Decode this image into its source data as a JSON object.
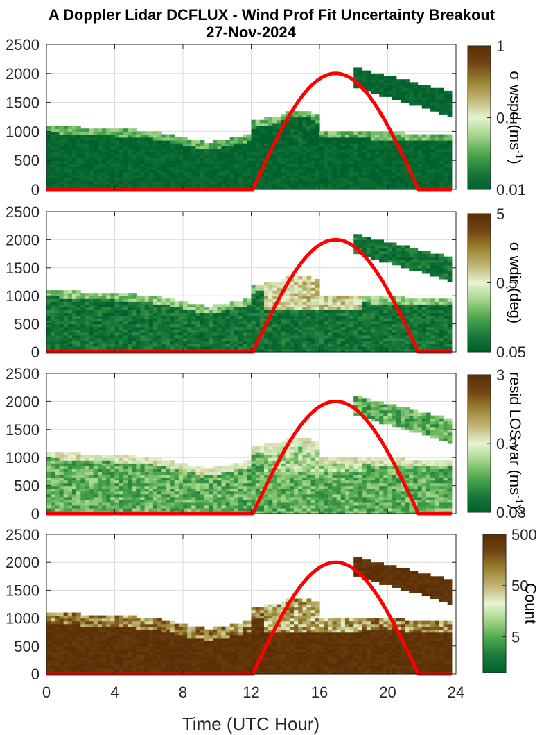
{
  "title_line1": "A Doppler Lidar DCFLUX - Wind Prof Fit Uncertainty Breakout",
  "title_line2": "27-Nov-2024",
  "colors": {
    "colormap": [
      "#00602d",
      "#1a7a3a",
      "#4fa84e",
      "#a6d68a",
      "#e6f3d4",
      "#c2b87a",
      "#9a8432",
      "#704312",
      "#5a2f06"
    ],
    "curve": "#ff0000",
    "grid": "#dcdcdc",
    "axis": "#262626"
  },
  "chart_data": [
    {
      "type": "heatmap",
      "panel": 1,
      "xlim": [
        0,
        24
      ],
      "ylim": [
        0,
        2500
      ],
      "xticks": [
        "0",
        "4",
        "8",
        "12",
        "16",
        "20",
        "24"
      ],
      "yticks": [
        "0",
        "500",
        "1000",
        "1500",
        "2000",
        "2500"
      ],
      "colorbar": {
        "scale": "log",
        "range": [
          0.01,
          1
        ],
        "ticks": [
          "0.01",
          "0.1",
          "1"
        ],
        "label_parts": [
          "σ wspd (ms",
          "-1",
          ")"
        ]
      },
      "field": {
        "base": 0.03,
        "mix_top": 0.12,
        "band_offset": 0.0,
        "variability": 0.05
      },
      "curve": {
        "rise_hour": 12.1,
        "set_hour": 21.8,
        "peak_value": 2000
      }
    },
    {
      "type": "heatmap",
      "panel": 2,
      "xlim": [
        0,
        24
      ],
      "ylim": [
        0,
        2500
      ],
      "xticks": [
        "0",
        "4",
        "8",
        "12",
        "16",
        "20",
        "24"
      ],
      "yticks": [
        "0",
        "500",
        "1000",
        "1500",
        "2000",
        "2500"
      ],
      "colorbar": {
        "scale": "log",
        "range": [
          0.05,
          5
        ],
        "ticks": [
          "0.05",
          "0.5",
          "5"
        ],
        "label_parts": [
          "σ wdir (deg)"
        ]
      },
      "field": {
        "base": 0.09,
        "mix_top": 0.72,
        "band_offset": 0.0,
        "variability": 0.09
      },
      "curve": {
        "rise_hour": 12.1,
        "set_hour": 21.8,
        "peak_value": 2000
      }
    },
    {
      "type": "heatmap",
      "panel": 3,
      "xlim": [
        0,
        24
      ],
      "ylim": [
        0,
        2500
      ],
      "xticks": [
        "0",
        "4",
        "8",
        "12",
        "16",
        "20",
        "24"
      ],
      "yticks": [
        "0",
        "500",
        "1000",
        "1500",
        "2000",
        "2500"
      ],
      "colorbar": {
        "scale": "log",
        "range": [
          0.03,
          3
        ],
        "ticks": [
          "0.03",
          "0.3",
          "3"
        ],
        "label_parts": [
          "resid LOS var (ms",
          "-1",
          ")",
          "2"
        ]
      },
      "field": {
        "base": 0.27,
        "mix_top": 0.55,
        "band_offset": 0.0,
        "variability": 0.12
      },
      "curve": {
        "rise_hour": 12.1,
        "set_hour": 21.8,
        "peak_value": 2000
      }
    },
    {
      "type": "heatmap",
      "panel": 4,
      "xlim": [
        0,
        24
      ],
      "ylim": [
        0,
        2500
      ],
      "xticks": [
        "0",
        "4",
        "8",
        "12",
        "16",
        "20",
        "24"
      ],
      "yticks": [
        "0",
        "500",
        "1000",
        "1500",
        "2000",
        "2500"
      ],
      "xlabel": "Time (UTC Hour)",
      "colorbar": {
        "scale": "log",
        "range": [
          1,
          500
        ],
        "ticks": [
          "5",
          "50",
          "500"
        ],
        "label_parts": [
          "Count"
        ]
      },
      "field": {
        "base": 0.97,
        "mix_top": 0.55,
        "band_offset": 0.0,
        "variability": 0.05
      },
      "curve": {
        "rise_hour": 12.1,
        "set_hour": 21.8,
        "peak_value": 2000
      }
    }
  ]
}
